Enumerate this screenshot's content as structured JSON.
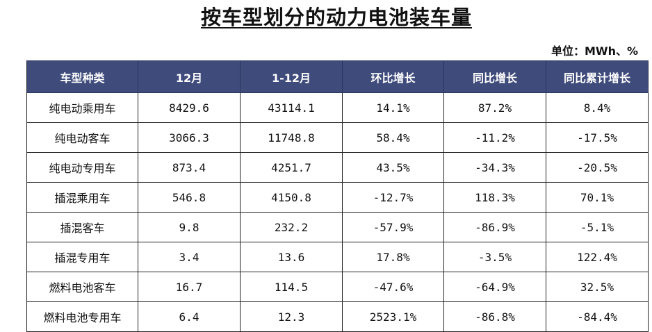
{
  "title": "按车型划分的动力电池装车量",
  "unit": "单位：MWh、%",
  "colors": {
    "header_bg": "#3f4b7b",
    "header_text": "#ffffff"
  },
  "table": {
    "headers": [
      "车型种类",
      "12月",
      "1-12月",
      "环比增长",
      "同比增长",
      "同比累计增长"
    ],
    "rows": [
      [
        "纯电动乘用车",
        "8429.6",
        "43114.1",
        "14.1%",
        "87.2%",
        "8.4%"
      ],
      [
        "纯电动客车",
        "3066.3",
        "11748.8",
        "58.4%",
        "-11.2%",
        "-17.5%"
      ],
      [
        "纯电动专用车",
        "873.4",
        "4251.7",
        "43.5%",
        "-34.3%",
        "-20.5%"
      ],
      [
        "插混乘用车",
        "546.8",
        "4150.8",
        "-12.7%",
        "118.3%",
        "70.1%"
      ],
      [
        "插混客车",
        "9.8",
        "232.2",
        "-57.9%",
        "-86.9%",
        "-5.1%"
      ],
      [
        "插混专用车",
        "3.4",
        "13.6",
        "17.8%",
        "-3.5%",
        "122.4%"
      ],
      [
        "燃料电池客车",
        "16.7",
        "114.5",
        "-47.6%",
        "-64.9%",
        "32.5%"
      ],
      [
        "燃料电池专用车",
        "6.4",
        "12.3",
        "2523.1%",
        "-86.8%",
        "-84.4%"
      ]
    ]
  }
}
